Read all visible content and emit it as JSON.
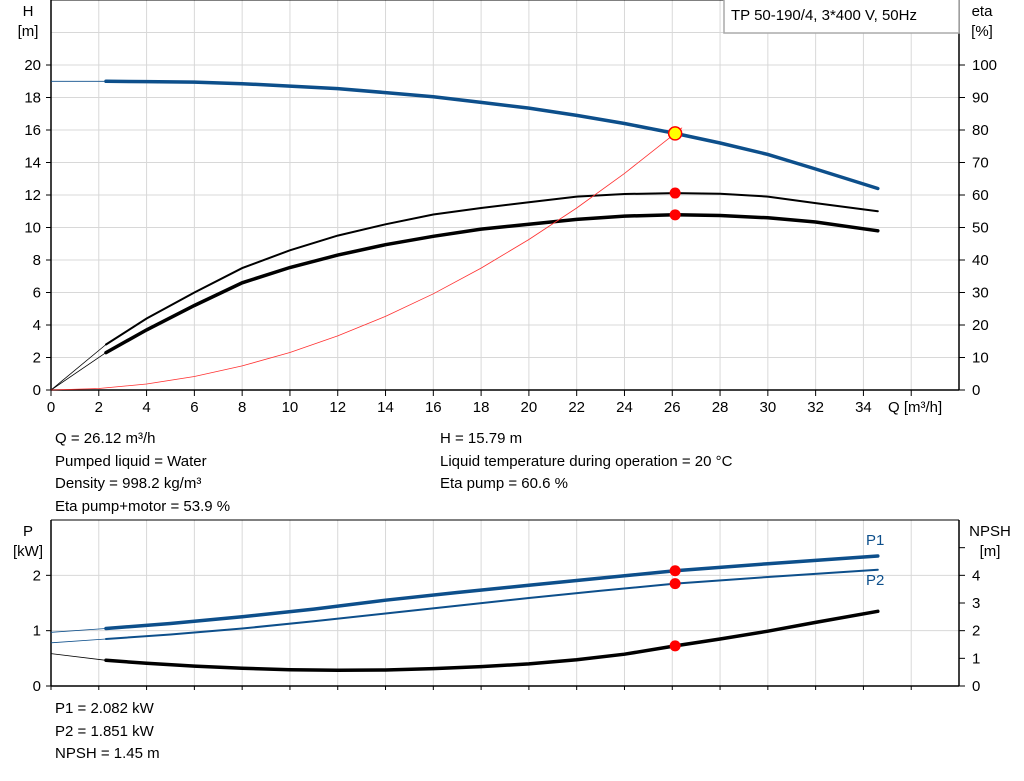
{
  "chart_data": [
    {
      "type": "line",
      "legend_box": "TP 50-190/4, 3*400 V, 50Hz",
      "xlabel": "Q [m³/h]",
      "ylabel_left": [
        "H",
        "[m]"
      ],
      "ylabel_right": [
        "eta",
        "[%]"
      ],
      "xlim": [
        0,
        38
      ],
      "ylim_left": [
        0,
        24
      ],
      "ylim_right": [
        0,
        120
      ],
      "x_ticks": [
        0,
        2,
        4,
        6,
        8,
        10,
        12,
        14,
        16,
        18,
        20,
        22,
        24,
        26,
        28,
        30,
        32,
        34
      ],
      "y_ticks_left": [
        0,
        2,
        4,
        6,
        8,
        10,
        12,
        14,
        16,
        18,
        20
      ],
      "y_ticks_right": [
        0,
        10,
        20,
        30,
        40,
        50,
        60,
        70,
        80,
        90,
        100
      ],
      "grid": true,
      "series": [
        {
          "id": "H",
          "axis": "left",
          "color": "#0d4f8b",
          "x": [
            2.3,
            4,
            6,
            8,
            10,
            12,
            14,
            16,
            18,
            20,
            22,
            24,
            26.12,
            28,
            30,
            32,
            34.6
          ],
          "y": [
            19.0,
            18.98,
            18.95,
            18.85,
            18.7,
            18.55,
            18.3,
            18.05,
            17.7,
            17.35,
            16.9,
            16.4,
            15.79,
            15.2,
            14.5,
            13.6,
            12.4
          ],
          "extension": {
            "x": [
              0,
              2.3
            ],
            "y": [
              19.0,
              19.0
            ]
          }
        },
        {
          "id": "eta-pump",
          "axis": "right",
          "color": "#000000",
          "x": [
            2.3,
            4,
            6,
            8,
            10,
            12,
            14,
            16,
            18,
            20,
            22,
            24,
            26.12,
            28,
            30,
            32,
            34.6
          ],
          "y": [
            14,
            22,
            30,
            37.5,
            43,
            47.5,
            51,
            54,
            56,
            57.8,
            59.5,
            60.3,
            60.6,
            60.4,
            59.5,
            57.5,
            55
          ],
          "extension": {
            "x": [
              0,
              2.3
            ],
            "y": [
              0,
              14
            ]
          }
        },
        {
          "id": "eta-pump-motor",
          "axis": "right",
          "color": "#000000",
          "x": [
            2.3,
            4,
            6,
            8,
            10,
            12,
            14,
            16,
            18,
            20,
            22,
            24,
            26.12,
            28,
            30,
            32,
            34.6
          ],
          "y": [
            11.5,
            18.5,
            26,
            33,
            37.7,
            41.5,
            44.7,
            47.3,
            49.5,
            51,
            52.5,
            53.5,
            53.9,
            53.7,
            53,
            51.7,
            49
          ],
          "extension": {
            "x": [
              0,
              2.3
            ],
            "y": [
              0,
              11.5
            ]
          }
        },
        {
          "id": "system-curve",
          "axis": "left",
          "color": "#ff3030",
          "x": [
            0,
            2,
            4,
            6,
            8,
            10,
            12,
            14,
            16,
            18,
            20,
            22,
            24,
            26.12,
            26.4
          ],
          "y": [
            0,
            0.09,
            0.37,
            0.83,
            1.48,
            2.31,
            3.33,
            4.53,
            5.92,
            7.5,
            9.26,
            11.2,
            13.33,
            15.79,
            16.13
          ]
        }
      ],
      "operating_points": [
        {
          "series": "H",
          "x": 26.12,
          "y": 15.79,
          "color": "#ffff00"
        },
        {
          "series": "eta-pump",
          "x": 26.12,
          "y": 60.6,
          "color": "#ff0000"
        },
        {
          "series": "eta-pump-motor",
          "x": 26.12,
          "y": 53.9,
          "color": "#ff0000"
        }
      ]
    },
    {
      "type": "line",
      "ylabel_left": [
        "P",
        "[kW]"
      ],
      "ylabel_right": [
        "NPSH",
        "[m]"
      ],
      "xlim": [
        0,
        38
      ],
      "ylim_left": [
        0,
        3
      ],
      "ylim_right": [
        0,
        6
      ],
      "y_ticks_left": [
        0,
        1,
        2
      ],
      "y_ticks_right": [
        0,
        1,
        2,
        3,
        4
      ],
      "grid": true,
      "series": [
        {
          "id": "P1",
          "name": "P1",
          "axis": "left",
          "color": "#0d4f8b",
          "x": [
            2.3,
            5,
            8,
            11,
            14,
            17,
            20,
            23,
            26.12,
            30,
            34.6
          ],
          "y": [
            1.04,
            1.13,
            1.25,
            1.39,
            1.55,
            1.69,
            1.82,
            1.95,
            2.082,
            2.21,
            2.35
          ],
          "extension": {
            "x": [
              0,
              2.3
            ],
            "y": [
              0.97,
              1.04
            ]
          }
        },
        {
          "id": "P2",
          "name": "P2",
          "axis": "left",
          "color": "#0d4f8b",
          "x": [
            2.3,
            5,
            8,
            11,
            14,
            17,
            20,
            23,
            26.12,
            30,
            34.6
          ],
          "y": [
            0.85,
            0.93,
            1.04,
            1.17,
            1.31,
            1.45,
            1.59,
            1.72,
            1.851,
            1.97,
            2.1
          ],
          "extension": {
            "x": [
              0,
              2.3
            ],
            "y": [
              0.78,
              0.85
            ]
          }
        },
        {
          "id": "NPSH",
          "axis": "right",
          "color": "#000000",
          "x": [
            2.3,
            4,
            6,
            8,
            10,
            12,
            14,
            16,
            18,
            20,
            22,
            24,
            26.12,
            28,
            30,
            32,
            34.6
          ],
          "y": [
            0.93,
            0.82,
            0.72,
            0.64,
            0.59,
            0.57,
            0.58,
            0.63,
            0.7,
            0.8,
            0.95,
            1.15,
            1.45,
            1.7,
            1.98,
            2.3,
            2.7
          ],
          "extension": {
            "x": [
              0,
              2.3
            ],
            "y": [
              1.17,
              0.93
            ]
          }
        }
      ],
      "operating_points": [
        {
          "series": "P1",
          "x": 26.12,
          "y": 2.082,
          "color": "#ff0000"
        },
        {
          "series": "P2",
          "x": 26.12,
          "y": 1.851,
          "color": "#ff0000"
        },
        {
          "series": "NPSH",
          "x": 26.12,
          "y": 1.45,
          "color": "#ff0000"
        }
      ]
    }
  ],
  "info_top_left": [
    "Q = 26.12 m³/h",
    "Pumped liquid = Water",
    "Density = 998.2 kg/m³",
    "Eta pump+motor = 53.9 %"
  ],
  "info_top_right": [
    "H = 15.79 m",
    "Liquid temperature during operation = 20 °C",
    "Eta pump = 60.6 %"
  ],
  "info_bottom": [
    "P1 = 2.082 kW",
    "P2 = 1.851 kW",
    "NPSH = 1.45 m"
  ]
}
